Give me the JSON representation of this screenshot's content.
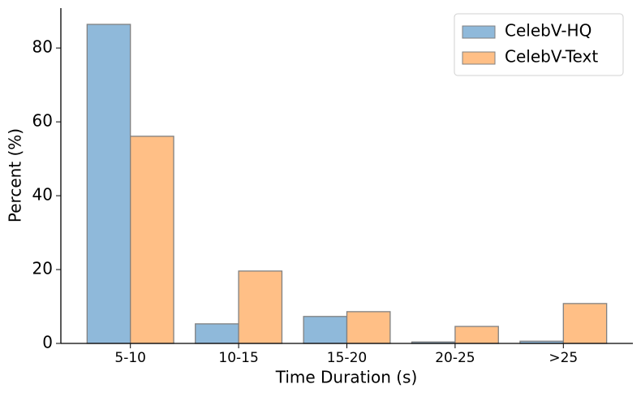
{
  "chart_data": {
    "type": "bar",
    "categories": [
      "5-10",
      "10-15",
      "15-20",
      "20-25",
      ">25"
    ],
    "series": [
      {
        "name": "CelebV-HQ",
        "color": "#8fb9da",
        "values": [
          86.4,
          5.3,
          7.3,
          0.4,
          0.6
        ]
      },
      {
        "name": "CelebV-Text",
        "color": "#ffbf86",
        "values": [
          56.1,
          19.6,
          8.6,
          4.6,
          10.8
        ]
      }
    ],
    "x_label": "Time Duration (s)",
    "y_label": "Percent (%)",
    "ylim": [
      0,
      90.8
    ],
    "yticks": [
      0,
      20,
      40,
      60,
      80
    ],
    "legend": "upper-right",
    "grid": false
  }
}
